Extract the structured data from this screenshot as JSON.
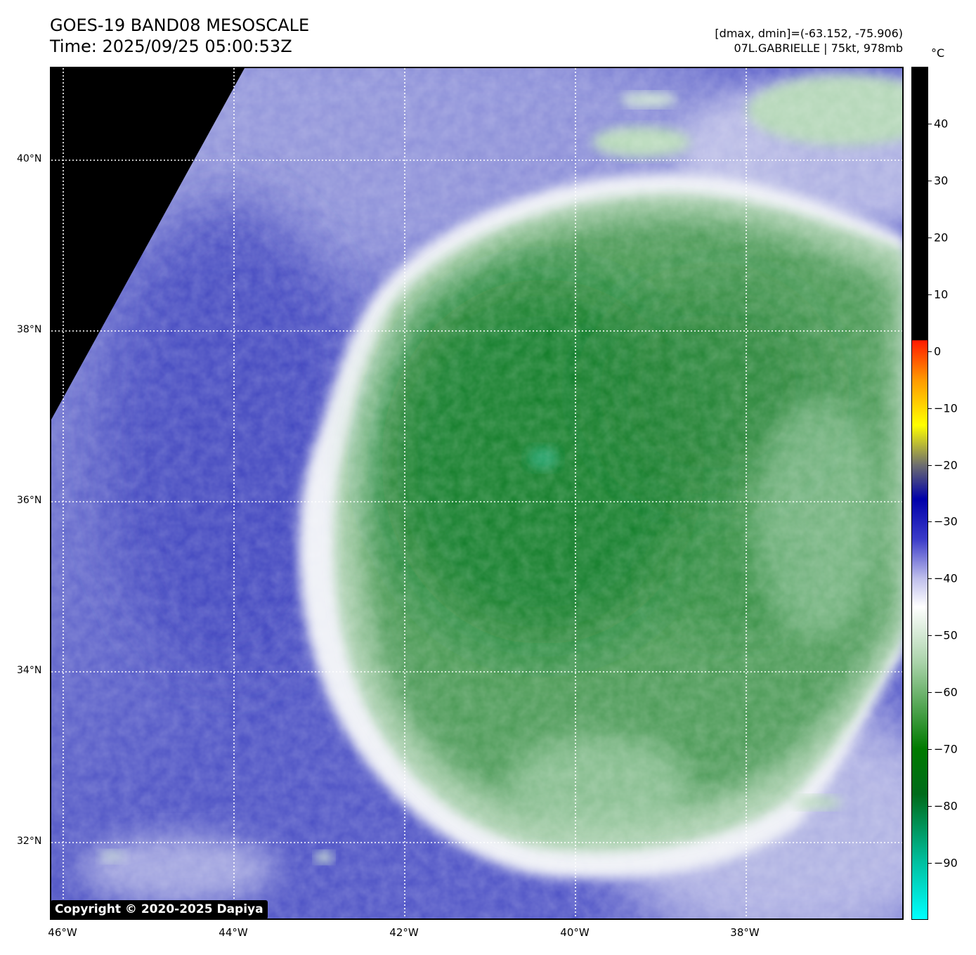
{
  "header": {
    "title_line1": "GOES-19 BAND08 MESOSCALE",
    "title_line2": "Time: 2025/09/25 05:00:53Z",
    "info_line1": "[dmax, dmin]=(-63.152, -75.906)",
    "info_line2": "07L.GABRIELLE | 75kt, 978mb"
  },
  "map": {
    "lat_labels": [
      "40°N",
      "38°N",
      "36°N",
      "34°N",
      "32°N"
    ],
    "lon_labels": [
      "46°W",
      "44°W",
      "42°W",
      "40°W",
      "38°W"
    ],
    "colors": {
      "space": "#000000",
      "clear_air": "#4f55c4",
      "cloud_edge": "#f4f6f4",
      "cold_cloud": "#2f8a3c",
      "core": "#0b7a1f",
      "eye_hint": "#1aa36a"
    }
  },
  "colorbar": {
    "unit": "°C",
    "ticks": [
      "40",
      "30",
      "20",
      "10",
      "0",
      "−10",
      "−20",
      "−30",
      "−40",
      "−50",
      "−60",
      "−70",
      "−80",
      "−90"
    ],
    "tick_values": [
      40,
      30,
      20,
      10,
      0,
      -10,
      -20,
      -30,
      -40,
      -50,
      -60,
      -70,
      -80,
      -90
    ],
    "range": [
      -100,
      50
    ]
  },
  "copyright": "Copyright © 2020-2025 Dapiya"
}
